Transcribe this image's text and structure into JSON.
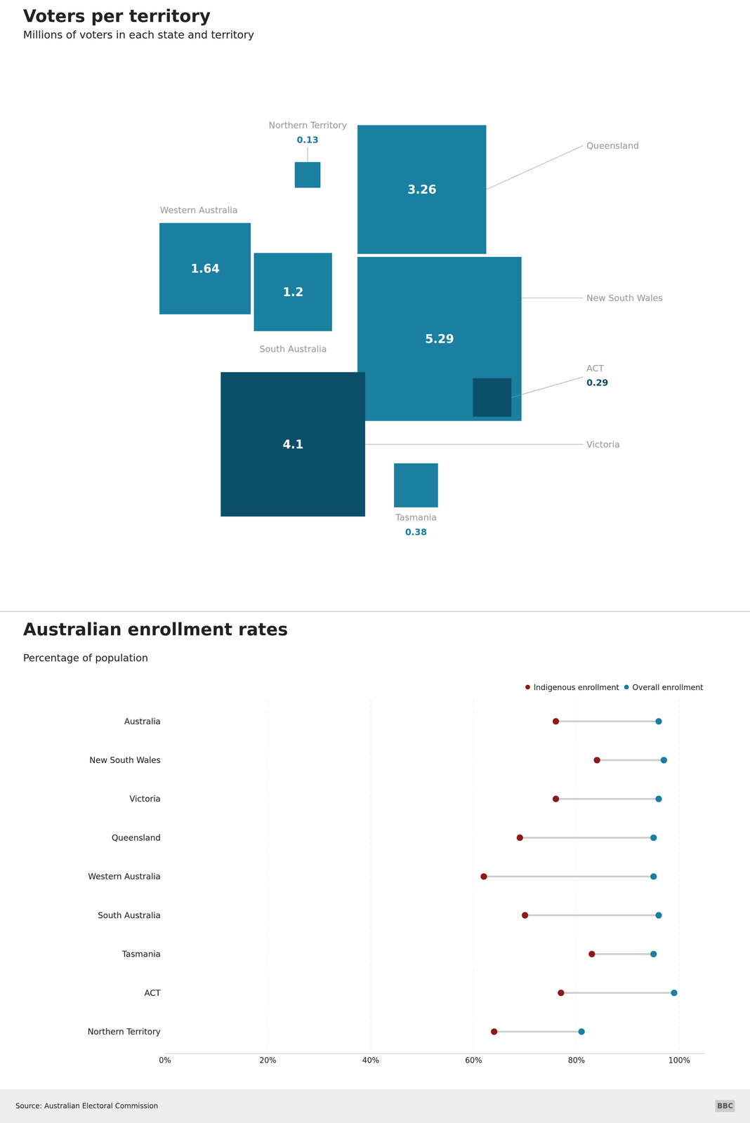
{
  "chart_data": [
    {
      "type": "proportional_squares",
      "title": "Voters per territory",
      "subtitle": "Millions of voters in each state and territory",
      "categories": [
        "Western Australia",
        "Northern Territory",
        "Queensland",
        "South Australia",
        "New South Wales",
        "Victoria",
        "ACT",
        "Tasmania"
      ],
      "values": [
        1.64,
        0.13,
        3.26,
        1.2,
        5.29,
        4.1,
        0.29,
        0.38
      ],
      "colors": [
        "#1a7fa0",
        "#1a7fa0",
        "#1a7fa0",
        "#1a7fa0",
        "#1a7fa0",
        "#0d4f6b",
        "#0d4f6b",
        "#1a7fa0"
      ],
      "data_labels": true,
      "tick_labels": false
    },
    {
      "type": "dot",
      "title": "Australian enrollment rates",
      "subtitle": "Percentage of population",
      "categories": [
        "Australia",
        "New South Wales",
        "Victoria",
        "Queensland",
        "Western Australia",
        "South Australia",
        "Tasmania",
        "ACT",
        "Northern Territory"
      ],
      "series": [
        {
          "name": "Indigenous enrollment",
          "color": "#8b1a1a",
          "values": [
            76,
            84,
            76,
            69,
            62,
            70,
            83,
            77,
            64
          ]
        },
        {
          "name": "Overall enrollment",
          "color": "#1a7fa0",
          "values": [
            96,
            97,
            96,
            95,
            95,
            96,
            95,
            99,
            81
          ]
        }
      ],
      "xlim": [
        0,
        105
      ],
      "xticks": [
        {
          "value": 0,
          "label": "0%"
        },
        {
          "value": 20,
          "label": "20%"
        },
        {
          "value": 40,
          "label": "40%"
        },
        {
          "value": 60,
          "label": "60%"
        },
        {
          "value": 80,
          "label": "80%"
        },
        {
          "value": 100,
          "label": "100%"
        }
      ],
      "grid": true,
      "legend": "upper right",
      "annotations": [
        "Source: Australian Electoral Commission",
        "BBC"
      ]
    }
  ]
}
